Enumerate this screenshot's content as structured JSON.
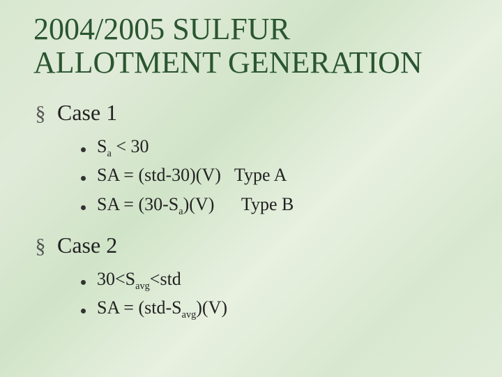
{
  "title": "2004/2005 SULFUR ALLOTMENT GENERATION",
  "cases": [
    {
      "label": "Case 1",
      "items": [
        {
          "pre": "S",
          "sub": "a",
          "post": " < 30"
        },
        {
          "pre": "SA = (std-30)(V)   Type A",
          "sub": "",
          "post": ""
        },
        {
          "pre": "SA = (30-S",
          "sub": "a",
          "post": ")(V)      Type B"
        }
      ]
    },
    {
      "label": "Case 2",
      "items": [
        {
          "pre": "30<S",
          "sub": "avg",
          "post": "<std"
        },
        {
          "pre": "SA = (std-S",
          "sub": "avg",
          "post": ")(V)"
        }
      ]
    }
  ],
  "colors": {
    "title": "#2a5530",
    "text": "#222222",
    "bullet": "#333333",
    "section": "#555555"
  }
}
